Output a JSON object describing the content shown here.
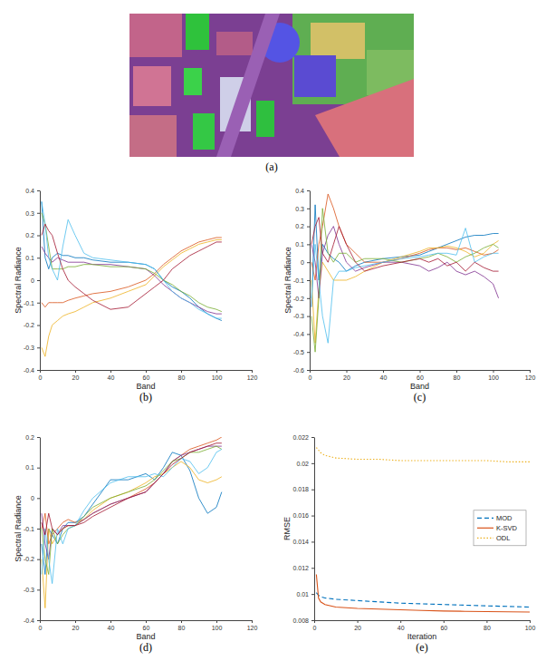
{
  "image": {
    "caption": "(a)"
  },
  "chart_data": [
    {
      "type": "line",
      "caption": "(b)",
      "xlabel": "Band",
      "ylabel": "Spectral Radiance",
      "xlim": [
        0,
        120
      ],
      "xticks": [
        0,
        20,
        40,
        60,
        80,
        100,
        120
      ],
      "ylim": [
        -0.4,
        0.4
      ],
      "yticks": [
        -0.4,
        -0.3,
        -0.2,
        -0.1,
        0,
        0.1,
        0.2,
        0.3,
        0.4
      ],
      "grid": false,
      "x": [
        1,
        3,
        5,
        7,
        10,
        13,
        16,
        20,
        25,
        30,
        40,
        50,
        60,
        65,
        70,
        75,
        80,
        85,
        90,
        95,
        100,
        103
      ],
      "series": [
        {
          "color": "#0072BD",
          "values": [
            0.35,
            0.1,
            0.05,
            0.1,
            0.12,
            0.11,
            0.11,
            0.1,
            0.1,
            0.09,
            0.08,
            0.08,
            0.07,
            0.05,
            0,
            -0.03,
            -0.05,
            -0.08,
            -0.12,
            -0.15,
            -0.17,
            -0.18
          ]
        },
        {
          "color": "#D95319",
          "values": [
            -0.1,
            -0.12,
            -0.1,
            -0.1,
            -0.1,
            -0.1,
            -0.09,
            -0.08,
            -0.07,
            -0.06,
            -0.05,
            -0.03,
            0,
            0.03,
            0.07,
            0.1,
            0.13,
            0.15,
            0.17,
            0.18,
            0.19,
            0.19
          ]
        },
        {
          "color": "#EDB120",
          "values": [
            -0.3,
            -0.34,
            -0.25,
            -0.2,
            -0.18,
            -0.16,
            -0.15,
            -0.14,
            -0.12,
            -0.1,
            -0.08,
            -0.05,
            -0.02,
            0.02,
            0.06,
            0.09,
            0.12,
            0.14,
            0.16,
            0.17,
            0.18,
            0.18
          ]
        },
        {
          "color": "#7E2F8E",
          "values": [
            0.15,
            0.12,
            0.1,
            0.08,
            0.1,
            0.09,
            0.08,
            0.08,
            0.08,
            0.07,
            0.07,
            0.06,
            0.05,
            0.02,
            -0.02,
            -0.05,
            -0.08,
            -0.1,
            -0.12,
            -0.14,
            -0.15,
            -0.15
          ]
        },
        {
          "color": "#77AC30",
          "values": [
            0.3,
            0.25,
            0.15,
            0.05,
            0.05,
            0.05,
            0.06,
            0.06,
            0.07,
            0.07,
            0.06,
            0.06,
            0.05,
            0.03,
            0,
            -0.02,
            -0.05,
            -0.07,
            -0.1,
            -0.12,
            -0.13,
            -0.14
          ]
        },
        {
          "color": "#4DBEEE",
          "values": [
            0.35,
            0.25,
            0.1,
            0.05,
            0,
            0.15,
            0.27,
            0.2,
            0.12,
            0.1,
            0.09,
            0.08,
            0.07,
            0.05,
            0,
            -0.05,
            -0.08,
            -0.1,
            -0.13,
            -0.15,
            -0.17,
            -0.17
          ]
        },
        {
          "color": "#A2142F",
          "values": [
            0.2,
            0.25,
            0.22,
            0.2,
            0.12,
            0.05,
            0,
            -0.03,
            -0.06,
            -0.09,
            -0.13,
            -0.12,
            -0.06,
            -0.03,
            0,
            0.05,
            0.08,
            0.11,
            0.13,
            0.15,
            0.17,
            0.17
          ]
        }
      ]
    },
    {
      "type": "line",
      "caption": "(c)",
      "xlabel": "Band",
      "ylabel": "Spectral Radiance",
      "xlim": [
        0,
        120
      ],
      "xticks": [
        0,
        20,
        40,
        60,
        80,
        100,
        120
      ],
      "ylim": [
        -0.6,
        0.4
      ],
      "yticks": [
        -0.6,
        -0.5,
        -0.4,
        -0.3,
        -0.2,
        -0.1,
        0,
        0.1,
        0.2,
        0.3,
        0.4
      ],
      "grid": false,
      "x": [
        1,
        3,
        5,
        7,
        10,
        13,
        16,
        20,
        25,
        30,
        40,
        50,
        60,
        65,
        70,
        75,
        80,
        85,
        90,
        95,
        100,
        103
      ],
      "series": [
        {
          "color": "#0072BD",
          "values": [
            -0.25,
            0.32,
            -0.1,
            0.1,
            0.05,
            0.02,
            0,
            -0.05,
            -0.02,
            0,
            0.02,
            0.03,
            0.04,
            0.06,
            0.08,
            0.1,
            0.12,
            0.14,
            0.15,
            0.15,
            0.16,
            0.16
          ]
        },
        {
          "color": "#D95319",
          "values": [
            0,
            -0.1,
            0.1,
            0.2,
            0.38,
            0.3,
            0.2,
            0.1,
            0.05,
            0,
            0,
            0.02,
            0.05,
            0.07,
            0.08,
            0.08,
            0.07,
            0.08,
            0.06,
            0.04,
            0.05,
            0.07
          ]
        },
        {
          "color": "#EDB120",
          "values": [
            -0.1,
            -0.45,
            -0.15,
            0,
            -0.05,
            -0.1,
            -0.1,
            -0.1,
            -0.08,
            -0.05,
            0,
            0.03,
            0.06,
            0.08,
            0.08,
            0.09,
            0.08,
            0.06,
            0.03,
            0.05,
            0.1,
            0.12
          ]
        },
        {
          "color": "#7E2F8E",
          "values": [
            0.1,
            0,
            -0.2,
            0.05,
            0.15,
            0.2,
            0.1,
            0,
            -0.05,
            -0.03,
            0,
            0,
            -0.02,
            -0.05,
            -0.03,
            0,
            -0.05,
            -0.07,
            -0.05,
            -0.08,
            -0.12,
            -0.2
          ]
        },
        {
          "color": "#77AC30",
          "values": [
            -0.3,
            -0.5,
            -0.2,
            0.3,
            0.05,
            0,
            0.05,
            0.05,
            0,
            0.02,
            0.02,
            0,
            0.02,
            0.03,
            0.05,
            0.03,
            0,
            0.03,
            0.05,
            0.08,
            0.1,
            0.08
          ]
        },
        {
          "color": "#4DBEEE",
          "values": [
            -0.2,
            0.1,
            -0.1,
            -0.3,
            -0.45,
            -0.1,
            -0.05,
            -0.05,
            -0.03,
            -0.02,
            0,
            0.02,
            0.03,
            0.04,
            0.05,
            0.05,
            0.04,
            0.19,
            0,
            0.03,
            0.05,
            0.05
          ]
        },
        {
          "color": "#A2142F",
          "values": [
            0.1,
            0.2,
            0.25,
            0.05,
            0,
            0.1,
            0.2,
            0.1,
            0,
            -0.05,
            -0.02,
            0,
            0.02,
            0,
            0.02,
            -0.02,
            0,
            -0.05,
            0,
            -0.03,
            -0.05,
            -0.05
          ]
        }
      ]
    },
    {
      "type": "line",
      "caption": "(d)",
      "xlabel": "Band",
      "ylabel": "Spectral Radiance",
      "xlim": [
        0,
        120
      ],
      "xticks": [
        0,
        20,
        40,
        60,
        80,
        100,
        120
      ],
      "ylim": [
        -0.4,
        0.2
      ],
      "yticks": [
        -0.4,
        -0.3,
        -0.2,
        -0.1,
        0,
        0.1,
        0.2
      ],
      "grid": false,
      "x": [
        1,
        3,
        5,
        7,
        10,
        13,
        16,
        20,
        25,
        30,
        40,
        50,
        60,
        65,
        70,
        75,
        80,
        85,
        90,
        95,
        100,
        103
      ],
      "series": [
        {
          "color": "#0072BD",
          "values": [
            -0.15,
            -0.25,
            -0.1,
            -0.12,
            -0.15,
            -0.1,
            -0.08,
            -0.08,
            -0.06,
            -0.02,
            0.06,
            0.06,
            0.08,
            0.06,
            0.1,
            0.15,
            0.14,
            0.09,
            0,
            -0.05,
            -0.03,
            0.02
          ]
        },
        {
          "color": "#D95319",
          "values": [
            -0.1,
            -0.05,
            -0.15,
            -0.12,
            -0.1,
            -0.08,
            -0.07,
            -0.08,
            -0.07,
            -0.05,
            -0.02,
            0,
            0.03,
            0.05,
            0.08,
            0.12,
            0.14,
            0.16,
            0.17,
            0.18,
            0.19,
            0.2
          ]
        },
        {
          "color": "#EDB120",
          "values": [
            -0.2,
            -0.36,
            -0.1,
            -0.15,
            -0.12,
            -0.1,
            -0.09,
            -0.09,
            -0.07,
            -0.04,
            0,
            0.02,
            0.05,
            0.07,
            0.08,
            0.1,
            0.12,
            0.1,
            0.06,
            0.05,
            0.06,
            0.07
          ]
        },
        {
          "color": "#7E2F8E",
          "values": [
            -0.05,
            -0.15,
            -0.2,
            -0.1,
            -0.12,
            -0.09,
            -0.09,
            -0.09,
            -0.07,
            -0.05,
            -0.02,
            0,
            0.02,
            0.05,
            0.08,
            0.12,
            0.14,
            0.15,
            0.16,
            0.17,
            0.17,
            0.17
          ]
        },
        {
          "color": "#77AC30",
          "values": [
            -0.1,
            -0.2,
            -0.25,
            -0.1,
            -0.15,
            -0.12,
            -0.1,
            -0.09,
            -0.06,
            -0.03,
            0,
            0.02,
            0.04,
            0.06,
            0.09,
            0.12,
            0.13,
            0.15,
            0.15,
            0.16,
            0.17,
            0.16
          ]
        },
        {
          "color": "#4DBEEE",
          "values": [
            -0.25,
            -0.1,
            -0.2,
            -0.28,
            -0.1,
            -0.15,
            -0.1,
            -0.09,
            -0.04,
            0,
            0.05,
            0.07,
            0.07,
            0.08,
            0.07,
            0.1,
            0.13,
            0.12,
            0.08,
            0.1,
            0.15,
            0.16
          ]
        },
        {
          "color": "#A2142F",
          "values": [
            -0.08,
            -0.12,
            -0.05,
            -0.1,
            -0.12,
            -0.1,
            -0.09,
            -0.09,
            -0.08,
            -0.06,
            -0.03,
            0,
            0.02,
            0.05,
            0.08,
            0.11,
            0.13,
            0.15,
            0.16,
            0.17,
            0.18,
            0.18
          ]
        }
      ]
    },
    {
      "type": "line",
      "caption": "(e)",
      "xlabel": "Iteration",
      "ylabel": "RMSE",
      "xlim": [
        0,
        100
      ],
      "xticks": [
        0,
        20,
        40,
        60,
        80,
        100
      ],
      "ylim": [
        0.008,
        0.022
      ],
      "yticks": [
        0.008,
        0.01,
        0.012,
        0.014,
        0.016,
        0.018,
        0.02,
        0.022
      ],
      "grid": false,
      "legend": "right",
      "x": [
        1,
        2,
        3,
        5,
        10,
        20,
        30,
        40,
        50,
        60,
        70,
        80,
        90,
        100
      ],
      "series": [
        {
          "name": "MOD",
          "color": "#0072BD",
          "line_style": "dashed",
          "values": [
            0.0101,
            0.0099,
            0.0098,
            0.0097,
            0.0096,
            0.0095,
            0.0094,
            0.0093,
            0.00925,
            0.0092,
            0.00915,
            0.0091,
            0.00905,
            0.009
          ]
        },
        {
          "name": "K-SVD",
          "color": "#D95319",
          "line_style": "solid",
          "values": [
            0.0115,
            0.0097,
            0.0094,
            0.0092,
            0.009,
            0.0089,
            0.00885,
            0.0088,
            0.00875,
            0.0087,
            0.00868,
            0.00866,
            0.00864,
            0.00862
          ]
        },
        {
          "name": "ODL",
          "color": "#EDB120",
          "line_style": "dotted",
          "values": [
            0.0212,
            0.021,
            0.0208,
            0.0206,
            0.0204,
            0.0203,
            0.0203,
            0.0202,
            0.0202,
            0.0202,
            0.0202,
            0.0202,
            0.0201,
            0.0201
          ]
        }
      ]
    }
  ]
}
